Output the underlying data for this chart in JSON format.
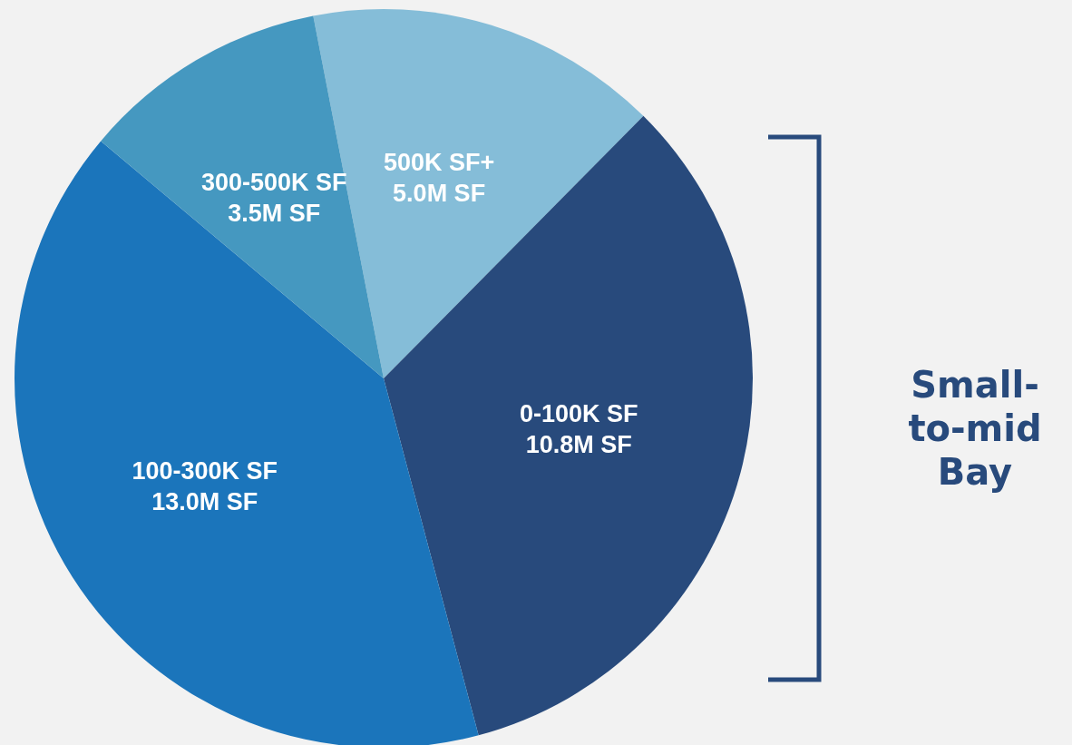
{
  "chart_data": {
    "type": "pie",
    "categories": [
      "500K SF+",
      "0-100K SF",
      "100-300K SF",
      "300-500K SF"
    ],
    "values": [
      5.0,
      10.8,
      13.0,
      3.5
    ],
    "value_labels": [
      "5.0M SF",
      "10.8M SF",
      "13.0M SF",
      "3.5M SF"
    ],
    "colors": [
      "#85bdd8",
      "#284a7c",
      "#1b75bb",
      "#4598c0"
    ],
    "annotations": [
      "Small-to-mid Bay"
    ]
  }
}
